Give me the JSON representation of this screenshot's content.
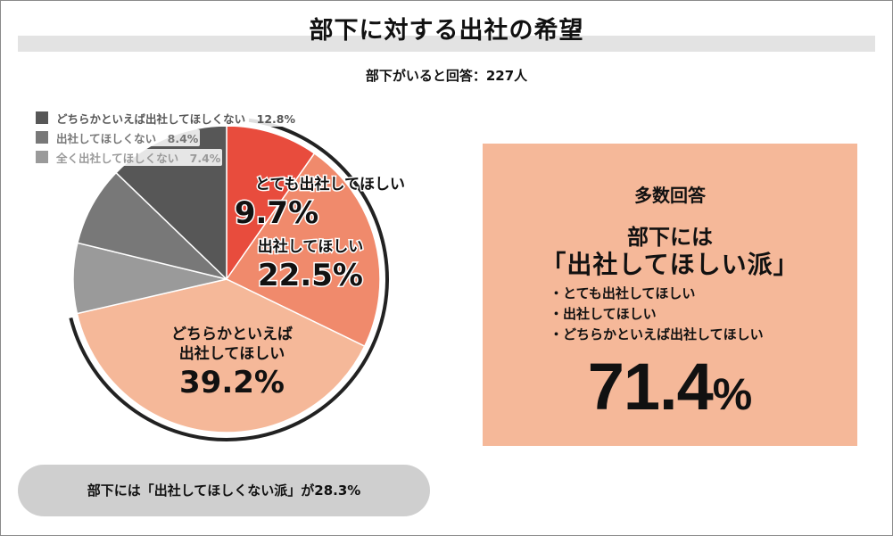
{
  "title": "部下に対する出社の希望",
  "subtitle": "部下がいると回答：227人",
  "chart_data": {
    "type": "pie",
    "title": "部下に対する出社の希望",
    "subtitle": "部下がいると回答：227人",
    "slices": [
      {
        "label": "とても出社してほしい",
        "value": 9.7,
        "value_label": "9.7%",
        "color": "#e84c3d"
      },
      {
        "label": "出社してほしい",
        "value": 22.5,
        "value_label": "22.5%",
        "color": "#f08a6c"
      },
      {
        "label": "どちらかといえば出社してほしい",
        "value": 39.2,
        "value_label": "39.2%",
        "color": "#f5b899"
      },
      {
        "label": "全く出社してほしくない",
        "value": 7.4,
        "value_label": "7.4%",
        "color": "#9a9a9a"
      },
      {
        "label": "出社してほしくない",
        "value": 8.4,
        "value_label": "8.4%",
        "color": "#787878"
      },
      {
        "label": "どちらかといえば出社してほしくない",
        "value": 12.8,
        "value_label": "12.8%",
        "color": "#575757"
      }
    ],
    "legend": [
      {
        "text": "どちらかといえば出社してほしくない　12.8%",
        "color": "#575757"
      },
      {
        "text": "出社してほしくない　8.4%",
        "color": "#787878"
      },
      {
        "text": "全く出社してほしくない　7.4%",
        "color": "#9a9a9a"
      }
    ],
    "legend_position": "top-left"
  },
  "callout": {
    "heading": "多数回答",
    "line1": "部下には",
    "line2": "「出社してほしい派」",
    "items": [
      "とても出社してほしい",
      "出社してほしい",
      "どちらかといえば出社してほしい"
    ],
    "total_number": "71.4",
    "total_unit": "%"
  },
  "bottom_note": "部下には「出社してほしくない派」が28.3%"
}
